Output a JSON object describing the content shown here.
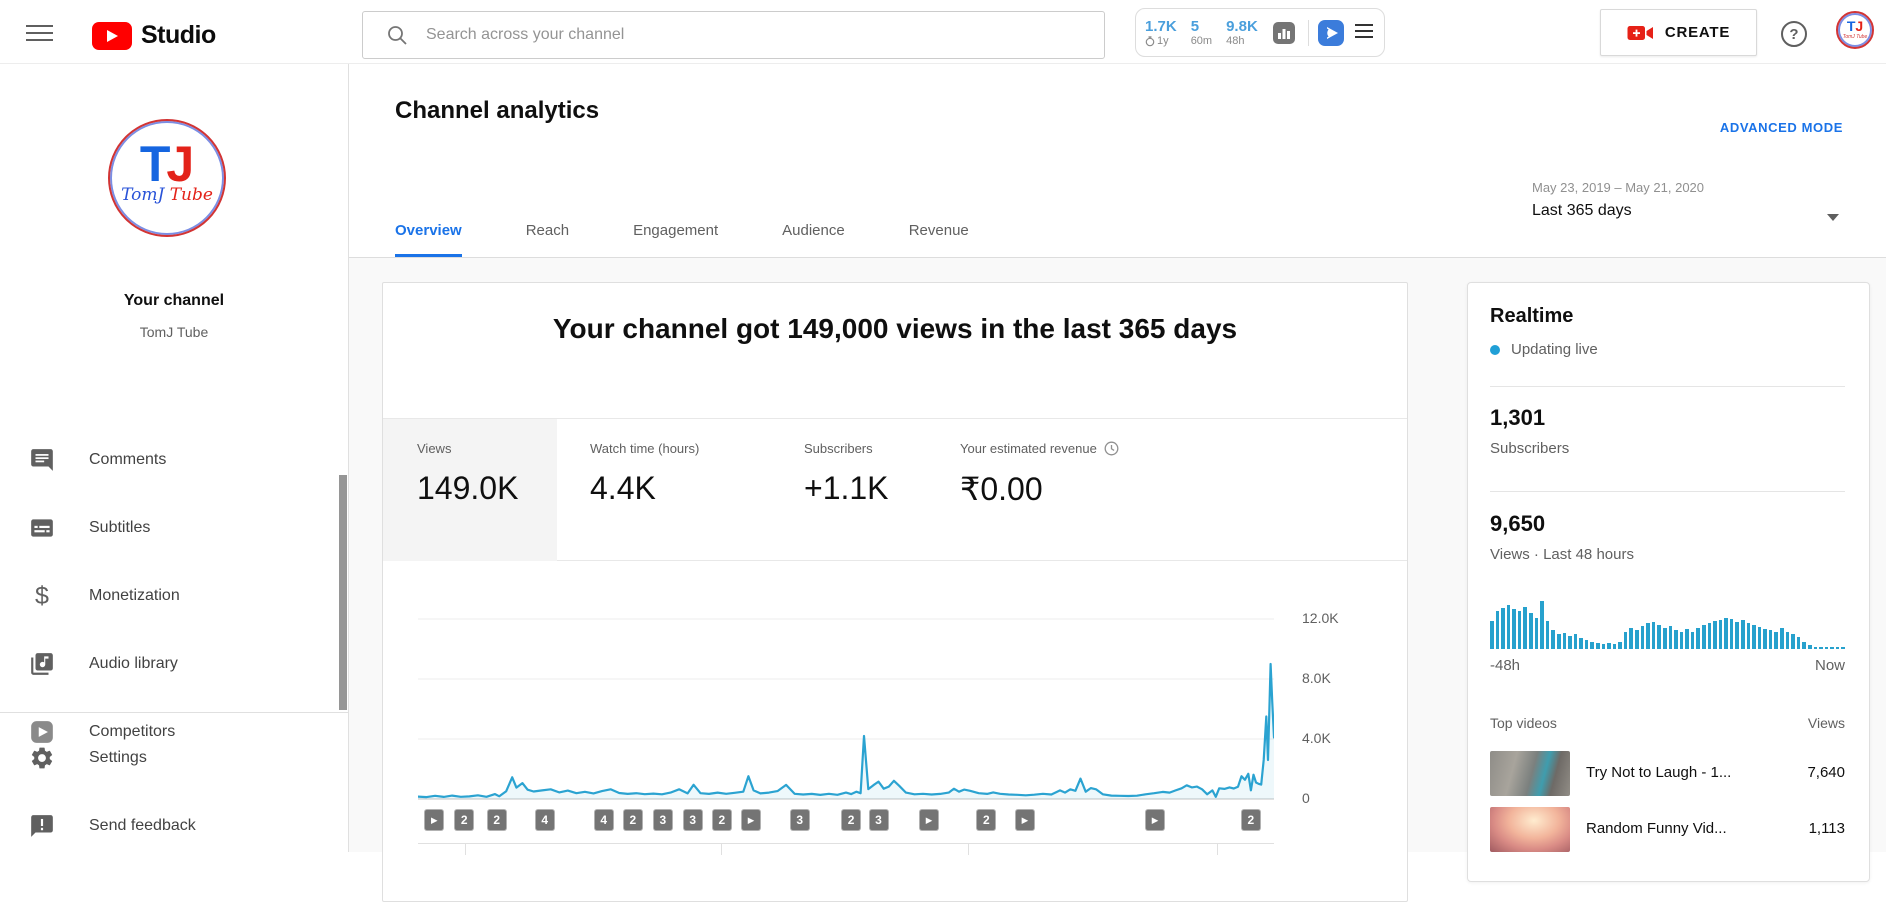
{
  "topbar": {
    "brand": {
      "name": "Studio"
    },
    "search": {
      "placeholder": "Search across your channel"
    },
    "vidiq": {
      "stats": [
        {
          "value": "1.7K",
          "label": "1y"
        },
        {
          "value": "5",
          "label": "60m"
        },
        {
          "value": "9.8K",
          "label": "48h"
        }
      ]
    },
    "create_label": "CREATE",
    "help_label": "?"
  },
  "sidebar": {
    "avatar": {
      "letter_t": "T",
      "letter_j": "J",
      "script_first": "TomJ",
      "script_second": "Tube"
    },
    "channel_title": "Your channel",
    "channel_name": "TomJ Tube",
    "items": [
      {
        "label": "Comments"
      },
      {
        "label": "Subtitles"
      },
      {
        "label": "Monetization"
      },
      {
        "label": "Audio library"
      },
      {
        "label": "Competitors"
      }
    ],
    "footer_items": [
      {
        "label": "Settings"
      },
      {
        "label": "Send feedback"
      }
    ]
  },
  "header": {
    "title": "Channel analytics",
    "advanced_mode_label": "ADVANCED MODE",
    "tabs": [
      {
        "label": "Overview",
        "active": true
      },
      {
        "label": "Reach"
      },
      {
        "label": "Engagement"
      },
      {
        "label": "Audience"
      },
      {
        "label": "Revenue"
      }
    ],
    "date_filter": {
      "range": "May 23, 2019 – May 21, 2020",
      "preset": "Last 365 days"
    }
  },
  "main": {
    "headline": "Your channel got 149,000 views in the last 365 days",
    "metrics": [
      {
        "label": "Views",
        "value": "149.0K",
        "active": true
      },
      {
        "label": "Watch time (hours)",
        "value": "4.4K"
      },
      {
        "label": "Subscribers",
        "value": "+1.1K"
      },
      {
        "label": "Your estimated revenue",
        "value": "₹0.00",
        "info_icon": "clock-icon"
      }
    ]
  },
  "chart_data": [
    {
      "id": "views-over-time",
      "type": "line",
      "title": "Views over the last 365 days",
      "x_range": [
        "May 23, 2019",
        "May 21, 2020"
      ],
      "y_ticks": [
        "12.0K",
        "8.0K",
        "4.0K",
        "0"
      ],
      "ylim": [
        0,
        12000
      ],
      "grid": true,
      "line_color": "#2ba3d1",
      "points": [
        [
          0.0,
          160
        ],
        [
          0.01,
          130
        ],
        [
          0.02,
          210
        ],
        [
          0.03,
          140
        ],
        [
          0.04,
          230
        ],
        [
          0.05,
          150
        ],
        [
          0.06,
          170
        ],
        [
          0.07,
          250
        ],
        [
          0.08,
          150
        ],
        [
          0.09,
          330
        ],
        [
          0.095,
          180
        ],
        [
          0.103,
          520
        ],
        [
          0.11,
          1450
        ],
        [
          0.115,
          760
        ],
        [
          0.122,
          1060
        ],
        [
          0.128,
          620
        ],
        [
          0.135,
          500
        ],
        [
          0.145,
          570
        ],
        [
          0.155,
          650
        ],
        [
          0.165,
          440
        ],
        [
          0.175,
          560
        ],
        [
          0.185,
          390
        ],
        [
          0.195,
          480
        ],
        [
          0.205,
          370
        ],
        [
          0.215,
          530
        ],
        [
          0.225,
          650
        ],
        [
          0.235,
          400
        ],
        [
          0.245,
          340
        ],
        [
          0.255,
          390
        ],
        [
          0.265,
          320
        ],
        [
          0.275,
          360
        ],
        [
          0.285,
          310
        ],
        [
          0.295,
          430
        ],
        [
          0.305,
          650
        ],
        [
          0.315,
          370
        ],
        [
          0.322,
          950
        ],
        [
          0.33,
          390
        ],
        [
          0.34,
          340
        ],
        [
          0.35,
          430
        ],
        [
          0.36,
          350
        ],
        [
          0.37,
          410
        ],
        [
          0.38,
          490
        ],
        [
          0.386,
          1520
        ],
        [
          0.392,
          570
        ],
        [
          0.4,
          370
        ],
        [
          0.41,
          430
        ],
        [
          0.42,
          530
        ],
        [
          0.43,
          940
        ],
        [
          0.44,
          350
        ],
        [
          0.45,
          300
        ],
        [
          0.46,
          340
        ],
        [
          0.47,
          270
        ],
        [
          0.48,
          350
        ],
        [
          0.49,
          280
        ],
        [
          0.5,
          430
        ],
        [
          0.506,
          330
        ],
        [
          0.512,
          490
        ],
        [
          0.517,
          390
        ],
        [
          0.521,
          4200
        ],
        [
          0.526,
          660
        ],
        [
          0.532,
          920
        ],
        [
          0.538,
          1160
        ],
        [
          0.544,
          690
        ],
        [
          0.55,
          830
        ],
        [
          0.556,
          1210
        ],
        [
          0.562,
          890
        ],
        [
          0.57,
          430
        ],
        [
          0.58,
          310
        ],
        [
          0.59,
          350
        ],
        [
          0.6,
          300
        ],
        [
          0.61,
          340
        ],
        [
          0.62,
          430
        ],
        [
          0.626,
          690
        ],
        [
          0.632,
          490
        ],
        [
          0.638,
          630
        ],
        [
          0.645,
          550
        ],
        [
          0.655,
          390
        ],
        [
          0.665,
          340
        ],
        [
          0.672,
          440
        ],
        [
          0.68,
          350
        ],
        [
          0.69,
          300
        ],
        [
          0.7,
          280
        ],
        [
          0.71,
          250
        ],
        [
          0.72,
          290
        ],
        [
          0.73,
          350
        ],
        [
          0.74,
          300
        ],
        [
          0.75,
          570
        ],
        [
          0.756,
          430
        ],
        [
          0.762,
          650
        ],
        [
          0.768,
          550
        ],
        [
          0.774,
          1360
        ],
        [
          0.78,
          490
        ],
        [
          0.786,
          730
        ],
        [
          0.792,
          650
        ],
        [
          0.8,
          310
        ],
        [
          0.81,
          230
        ],
        [
          0.82,
          210
        ],
        [
          0.83,
          200
        ],
        [
          0.84,
          220
        ],
        [
          0.85,
          310
        ],
        [
          0.86,
          390
        ],
        [
          0.87,
          470
        ],
        [
          0.878,
          430
        ],
        [
          0.885,
          570
        ],
        [
          0.892,
          710
        ],
        [
          0.898,
          910
        ],
        [
          0.904,
          770
        ],
        [
          0.91,
          830
        ],
        [
          0.916,
          650
        ],
        [
          0.922,
          310
        ],
        [
          0.928,
          570
        ],
        [
          0.932,
          150
        ],
        [
          0.936,
          710
        ],
        [
          0.942,
          670
        ],
        [
          0.948,
          770
        ],
        [
          0.953,
          700
        ],
        [
          0.958,
          820
        ],
        [
          0.962,
          1520
        ],
        [
          0.966,
          1280
        ],
        [
          0.97,
          1680
        ],
        [
          0.973,
          580
        ],
        [
          0.976,
          1620
        ],
        [
          0.979,
          1100
        ],
        [
          0.982,
          1010
        ],
        [
          0.985,
          960
        ],
        [
          0.988,
          2600
        ],
        [
          0.991,
          5500
        ],
        [
          0.993,
          2600
        ],
        [
          0.996,
          9000
        ],
        [
          0.998,
          6400
        ],
        [
          1.0,
          4100
        ]
      ],
      "video_markers": [
        {
          "pos": 0.019,
          "badge": "play"
        },
        {
          "pos": 0.054,
          "badge": "2"
        },
        {
          "pos": 0.092,
          "badge": "2"
        },
        {
          "pos": 0.148,
          "badge": "4"
        },
        {
          "pos": 0.217,
          "badge": "4"
        },
        {
          "pos": 0.251,
          "badge": "2"
        },
        {
          "pos": 0.286,
          "badge": "3"
        },
        {
          "pos": 0.321,
          "badge": "3"
        },
        {
          "pos": 0.355,
          "badge": "2"
        },
        {
          "pos": 0.389,
          "badge": "play"
        },
        {
          "pos": 0.446,
          "badge": "3"
        },
        {
          "pos": 0.506,
          "badge": "2"
        },
        {
          "pos": 0.538,
          "badge": "3"
        },
        {
          "pos": 0.597,
          "badge": "play"
        },
        {
          "pos": 0.664,
          "badge": "2"
        },
        {
          "pos": 0.709,
          "badge": "play"
        },
        {
          "pos": 0.861,
          "badge": "play"
        },
        {
          "pos": 0.973,
          "badge": "2"
        }
      ]
    },
    {
      "id": "realtime-48h",
      "type": "bar",
      "x_axis": {
        "left": "-48h",
        "right": "Now"
      },
      "bar_color": "#27a1cd",
      "values": [
        0.56,
        0.76,
        0.82,
        0.88,
        0.8,
        0.76,
        0.84,
        0.72,
        0.62,
        0.97,
        0.56,
        0.38,
        0.3,
        0.33,
        0.27,
        0.3,
        0.22,
        0.18,
        0.14,
        0.12,
        0.11,
        0.13,
        0.11,
        0.14,
        0.34,
        0.42,
        0.38,
        0.46,
        0.52,
        0.55,
        0.48,
        0.42,
        0.46,
        0.38,
        0.34,
        0.4,
        0.34,
        0.42,
        0.48,
        0.52,
        0.56,
        0.58,
        0.62,
        0.6,
        0.55,
        0.58,
        0.52,
        0.48,
        0.45,
        0.4,
        0.38,
        0.34,
        0.42,
        0.34,
        0.3,
        0.24,
        0.15,
        0.08,
        0.03,
        0.03,
        0.03,
        0.03,
        0.03,
        0.03
      ]
    }
  ],
  "realtime": {
    "title": "Realtime",
    "live_status": "Updating live",
    "stats": [
      {
        "value": "1,301",
        "label": "Subscribers"
      },
      {
        "value": "9,650",
        "label": "Views · Last 48 hours"
      }
    ],
    "axis": {
      "left": "-48h",
      "right": "Now"
    },
    "top_videos": {
      "header": "Top videos",
      "views_header": "Views",
      "rows": [
        {
          "title": "Try Not to Laugh - 1...",
          "views": "7,640"
        },
        {
          "title": "Random Funny Vid...",
          "views": "1,113"
        }
      ]
    }
  },
  "colors": {
    "accent_blue": "#1a73e8",
    "chart_cyan": "#2ba3d1",
    "brand_red": "#ff0000"
  }
}
